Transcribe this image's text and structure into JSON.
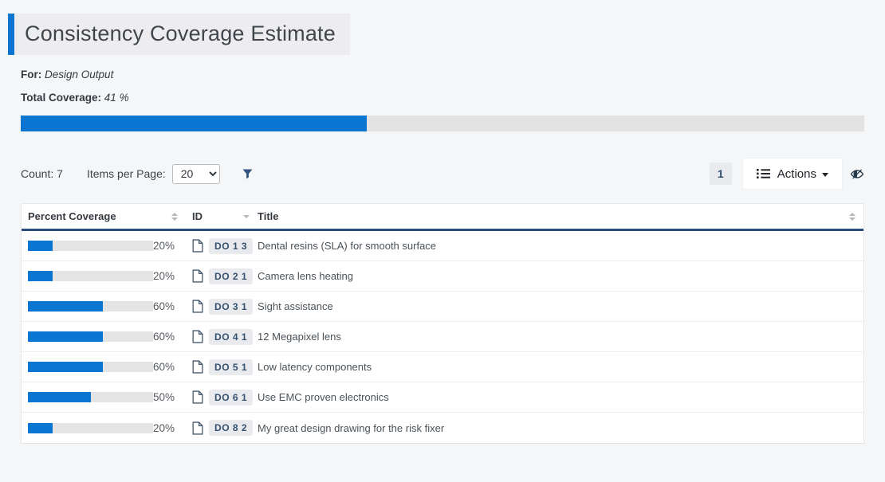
{
  "page": {
    "title": "Consistency Coverage Estimate",
    "for_label": "For:",
    "for_value": "Design Output",
    "total_coverage_label": "Total Coverage:",
    "total_coverage_value": "41 %",
    "total_coverage_percent": 41
  },
  "toolbar": {
    "count_label": "Count: 7",
    "items_per_page_label": "Items per Page:",
    "items_per_page_selected": "20",
    "page_number": "1",
    "actions_label": "Actions"
  },
  "icons": {
    "filter": "funnel-icon",
    "actions": "list-icon",
    "visibility": "eye-slash-icon",
    "row": "document-icon",
    "select": "chevron-down-icon"
  },
  "colors": {
    "accent_blue": "#0b76d2",
    "navy_border": "#2b4d7c",
    "badge_text": "#35516f",
    "track_gray": "#e4e4e5"
  },
  "table": {
    "columns": [
      {
        "label": "Percent Coverage",
        "sort": "both"
      },
      {
        "label": "ID",
        "sort": "down"
      },
      {
        "label": "Title",
        "sort": "both"
      }
    ],
    "rows": [
      {
        "percent": 20,
        "percent_label": "20%",
        "id": "DO 1 3",
        "title": "Dental resins (SLA) for smooth surface"
      },
      {
        "percent": 20,
        "percent_label": "20%",
        "id": "DO 2 1",
        "title": "Camera lens heating"
      },
      {
        "percent": 60,
        "percent_label": "60%",
        "id": "DO 3 1",
        "title": "Sight assistance"
      },
      {
        "percent": 60,
        "percent_label": "60%",
        "id": "DO 4 1",
        "title": "12 Megapixel lens"
      },
      {
        "percent": 60,
        "percent_label": "60%",
        "id": "DO 5 1",
        "title": "Low latency components"
      },
      {
        "percent": 50,
        "percent_label": "50%",
        "id": "DO 6 1",
        "title": "Use EMC proven electronics"
      },
      {
        "percent": 20,
        "percent_label": "20%",
        "id": "DO 8 2",
        "title": "My great design drawing for the risk fixer"
      }
    ]
  }
}
